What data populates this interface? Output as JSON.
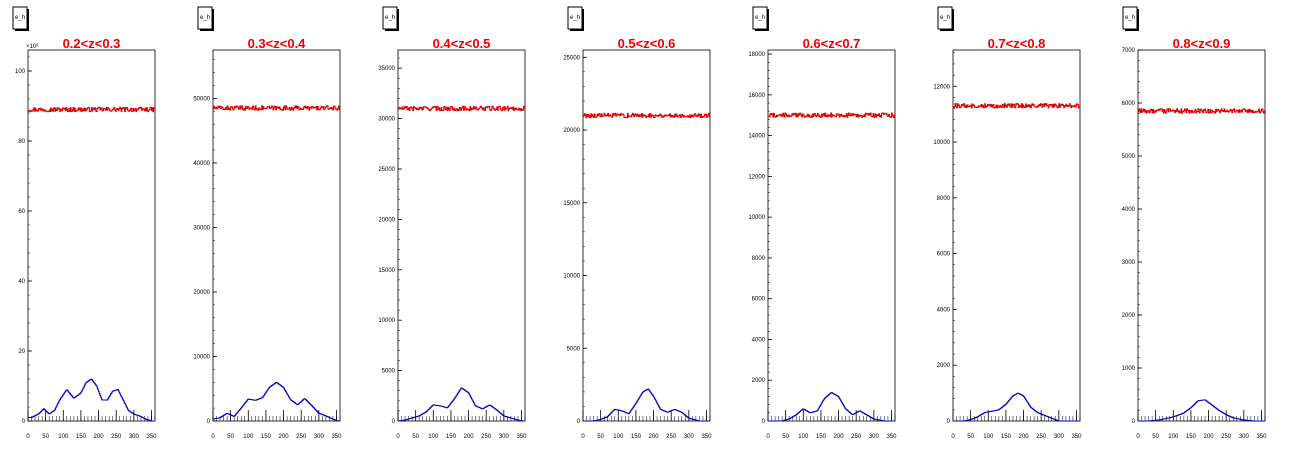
{
  "window": {
    "width": 1296,
    "height": 472
  },
  "colors": {
    "top_series": "#e00000",
    "bottom_series": "#0000c8",
    "title": "#ee0000",
    "axes": "#000000",
    "background": "#ffffff"
  },
  "chart_data": [
    {
      "type": "line",
      "statbox": "e_h",
      "title": "0.2<z<0.3",
      "exponent_label": "×10³",
      "xlim": [
        0,
        360
      ],
      "ylim": [
        0,
        106
      ],
      "xticks": [
        0,
        50,
        100,
        150,
        200,
        250,
        300,
        350
      ],
      "xtick_labels": [
        "0",
        "50",
        "100",
        "150",
        "200",
        "250",
        "300",
        "350"
      ],
      "yticks": [
        0,
        20,
        40,
        60,
        80,
        100
      ],
      "ytick_labels": [
        "0",
        "20",
        "40",
        "60",
        "80",
        "100"
      ],
      "series": [
        {
          "role": "top",
          "x": [
            0,
            360
          ],
          "values": [
            89,
            89
          ]
        },
        {
          "role": "bottom",
          "x": [
            0,
            10,
            30,
            45,
            60,
            75,
            90,
            110,
            130,
            150,
            165,
            180,
            195,
            210,
            225,
            240,
            255,
            270,
            285,
            300,
            315,
            335,
            350
          ],
          "values": [
            1,
            1,
            2,
            3.5,
            2,
            3,
            6,
            9,
            6.5,
            8,
            11,
            12,
            10,
            6,
            6,
            8.5,
            9,
            6,
            3,
            2,
            1.5,
            0.5,
            0
          ]
        }
      ]
    },
    {
      "type": "line",
      "statbox": "e_h",
      "title": "0.3<z<0.4",
      "exponent_label": "",
      "xlim": [
        0,
        360
      ],
      "ylim": [
        0,
        57500
      ],
      "xticks": [
        0,
        50,
        100,
        150,
        200,
        250,
        300,
        350
      ],
      "xtick_labels": [
        "0",
        "50",
        "100",
        "150",
        "200",
        "250",
        "300",
        "350"
      ],
      "yticks": [
        0,
        10000,
        20000,
        30000,
        40000,
        50000
      ],
      "ytick_labels": [
        "0",
        "10000",
        "20000",
        "30000",
        "40000",
        "50000"
      ],
      "series": [
        {
          "role": "top",
          "x": [
            0,
            360
          ],
          "values": [
            48500,
            48500
          ]
        },
        {
          "role": "bottom",
          "x": [
            0,
            20,
            40,
            60,
            80,
            100,
            120,
            140,
            160,
            180,
            200,
            220,
            240,
            260,
            280,
            300,
            320,
            340,
            355
          ],
          "values": [
            300,
            500,
            1200,
            700,
            2000,
            3400,
            3200,
            3600,
            5200,
            6000,
            5200,
            3300,
            2500,
            3500,
            2400,
            1200,
            800,
            300,
            0
          ]
        }
      ]
    },
    {
      "type": "line",
      "statbox": "e_h",
      "title": "0.4<z<0.5",
      "exponent_label": "",
      "xlim": [
        0,
        360
      ],
      "ylim": [
        0,
        36800
      ],
      "xticks": [
        0,
        50,
        100,
        150,
        200,
        250,
        300,
        350
      ],
      "xtick_labels": [
        "0",
        "50",
        "100",
        "150",
        "200",
        "250",
        "300",
        "350"
      ],
      "yticks": [
        0,
        5000,
        10000,
        15000,
        20000,
        25000,
        30000,
        35000
      ],
      "ytick_labels": [
        "0",
        "5000",
        "10000",
        "15000",
        "20000",
        "25000",
        "30000",
        "35000"
      ],
      "series": [
        {
          "role": "top",
          "x": [
            0,
            360
          ],
          "values": [
            31000,
            31000
          ]
        },
        {
          "role": "bottom",
          "x": [
            0,
            20,
            40,
            60,
            80,
            100,
            120,
            140,
            160,
            180,
            200,
            220,
            240,
            260,
            280,
            300,
            320,
            340,
            355
          ],
          "values": [
            0,
            100,
            300,
            500,
            900,
            1600,
            1500,
            1300,
            2200,
            3300,
            2800,
            1500,
            1200,
            1600,
            1100,
            500,
            300,
            100,
            0
          ]
        }
      ]
    },
    {
      "type": "line",
      "statbox": "e_h",
      "title": "0.5<z<0.6",
      "exponent_label": "",
      "xlim": [
        0,
        360
      ],
      "ylim": [
        0,
        25500
      ],
      "xticks": [
        0,
        50,
        100,
        150,
        200,
        250,
        300,
        350
      ],
      "xtick_labels": [
        "0",
        "50",
        "100",
        "150",
        "200",
        "250",
        "300",
        "350"
      ],
      "yticks": [
        0,
        5000,
        10000,
        15000,
        20000,
        25000
      ],
      "ytick_labels": [
        "0",
        "5000",
        "10000",
        "15000",
        "20000",
        "25000"
      ],
      "series": [
        {
          "role": "top",
          "x": [
            0,
            360
          ],
          "values": [
            21000,
            21000
          ]
        },
        {
          "role": "bottom",
          "x": [
            0,
            30,
            50,
            70,
            90,
            110,
            130,
            150,
            170,
            185,
            200,
            220,
            240,
            260,
            280,
            300,
            330,
            355
          ],
          "values": [
            0,
            0,
            100,
            300,
            800,
            700,
            500,
            1200,
            2000,
            2200,
            1700,
            800,
            600,
            800,
            600,
            200,
            0,
            0
          ]
        }
      ]
    },
    {
      "type": "line",
      "statbox": "e_h",
      "title": "0.6<z<0.7",
      "exponent_label": "",
      "xlim": [
        0,
        360
      ],
      "ylim": [
        0,
        18200
      ],
      "xticks": [
        0,
        50,
        100,
        150,
        200,
        250,
        300,
        350
      ],
      "xtick_labels": [
        "0",
        "50",
        "100",
        "150",
        "200",
        "250",
        "300",
        "350"
      ],
      "yticks": [
        0,
        2000,
        4000,
        6000,
        8000,
        10000,
        12000,
        14000,
        16000,
        18000
      ],
      "ytick_labels": [
        "0",
        "2000",
        "4000",
        "6000",
        "8000",
        "10000",
        "12000",
        "14000",
        "16000",
        "18000"
      ],
      "series": [
        {
          "role": "top",
          "x": [
            0,
            360
          ],
          "values": [
            15000,
            15000
          ]
        },
        {
          "role": "bottom",
          "x": [
            0,
            40,
            60,
            80,
            100,
            120,
            140,
            160,
            180,
            200,
            220,
            240,
            260,
            280,
            300,
            330,
            355
          ],
          "values": [
            0,
            0,
            100,
            300,
            600,
            400,
            500,
            1100,
            1400,
            1200,
            600,
            300,
            500,
            300,
            100,
            0,
            0
          ]
        }
      ]
    },
    {
      "type": "line",
      "statbox": "e_h",
      "title": "0.7<z<0.8",
      "exponent_label": "",
      "xlim": [
        0,
        360
      ],
      "ylim": [
        0,
        13300
      ],
      "xticks": [
        0,
        50,
        100,
        150,
        200,
        250,
        300,
        350
      ],
      "xtick_labels": [
        "0",
        "50",
        "100",
        "150",
        "200",
        "250",
        "300",
        "350"
      ],
      "yticks": [
        0,
        2000,
        4000,
        6000,
        8000,
        10000,
        12000
      ],
      "ytick_labels": [
        "0",
        "2000",
        "4000",
        "6000",
        "8000",
        "10000",
        "12000"
      ],
      "series": [
        {
          "role": "top",
          "x": [
            0,
            360
          ],
          "values": [
            11300,
            11300
          ]
        },
        {
          "role": "bottom",
          "x": [
            0,
            30,
            50,
            70,
            90,
            110,
            130,
            150,
            170,
            185,
            200,
            220,
            240,
            260,
            280,
            300,
            330,
            355
          ],
          "values": [
            0,
            0,
            50,
            150,
            300,
            350,
            400,
            600,
            900,
            1000,
            900,
            500,
            300,
            200,
            100,
            0,
            0,
            0
          ]
        }
      ]
    },
    {
      "type": "line",
      "statbox": "e_h",
      "title": "0.8<z<0.9",
      "exponent_label": "",
      "xlim": [
        0,
        360
      ],
      "ylim": [
        0,
        7000
      ],
      "xticks": [
        0,
        50,
        100,
        150,
        200,
        250,
        300,
        350
      ],
      "xtick_labels": [
        "0",
        "50",
        "100",
        "150",
        "200",
        "250",
        "300",
        "350"
      ],
      "yticks": [
        0,
        1000,
        2000,
        3000,
        4000,
        5000,
        6000,
        7000
      ],
      "ytick_labels": [
        "0",
        "1000",
        "2000",
        "3000",
        "4000",
        "5000",
        "6000",
        "7000"
      ],
      "series": [
        {
          "role": "top",
          "x": [
            0,
            360
          ],
          "values": [
            5850,
            5850
          ]
        },
        {
          "role": "bottom",
          "x": [
            0,
            30,
            60,
            90,
            110,
            130,
            150,
            170,
            190,
            210,
            230,
            250,
            270,
            300,
            330,
            355
          ],
          "values": [
            0,
            0,
            20,
            60,
            100,
            150,
            250,
            380,
            400,
            300,
            200,
            120,
            60,
            20,
            0,
            0
          ]
        }
      ]
    }
  ]
}
